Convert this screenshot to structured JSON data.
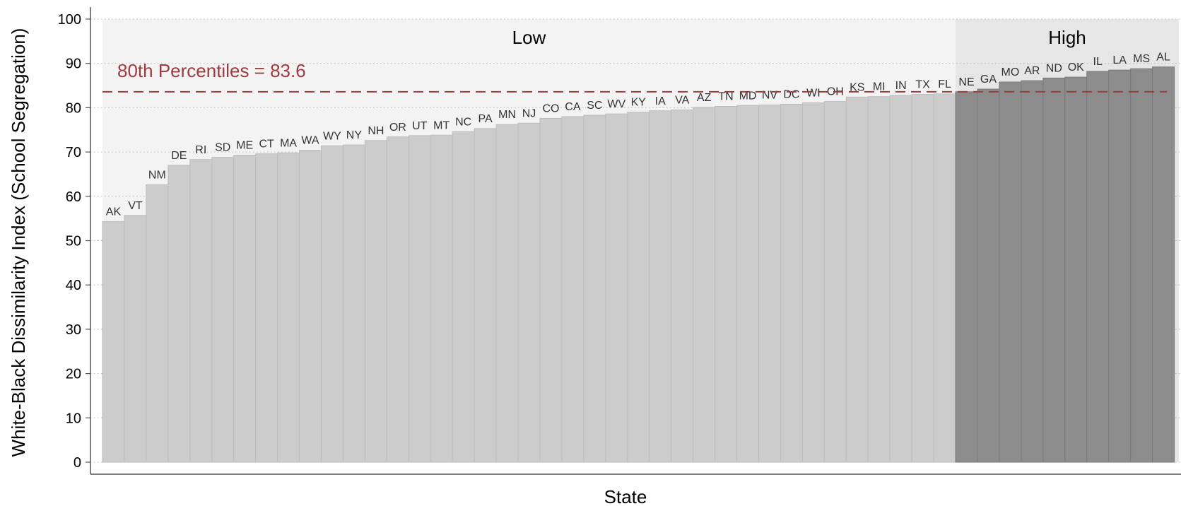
{
  "chart_data": {
    "type": "bar",
    "xlabel": "State",
    "ylabel": "White-Black Dissimilarity Index (School Segregation)",
    "ylim": [
      0,
      100
    ],
    "yticks": [
      0,
      10,
      20,
      30,
      40,
      50,
      60,
      70,
      80,
      90,
      100
    ],
    "grid": "horizontal dotted",
    "categories": [
      "AK",
      "VT",
      "NM",
      "DE",
      "RI",
      "SD",
      "ME",
      "CT",
      "MA",
      "WA",
      "WY",
      "NY",
      "NH",
      "OR",
      "UT",
      "MT",
      "NC",
      "PA",
      "MN",
      "NJ",
      "CO",
      "CA",
      "SC",
      "WV",
      "KY",
      "IA",
      "VA",
      "AZ",
      "TN",
      "MD",
      "NV",
      "DC",
      "WI",
      "OH",
      "KS",
      "MI",
      "IN",
      "TX",
      "FL",
      "NE",
      "GA",
      "MO",
      "AR",
      "ND",
      "OK",
      "IL",
      "LA",
      "MS",
      "AL"
    ],
    "values": [
      54.3,
      55.7,
      62.6,
      67.0,
      68.3,
      68.8,
      69.3,
      69.6,
      69.8,
      70.4,
      71.4,
      71.6,
      72.6,
      73.4,
      73.7,
      73.8,
      74.6,
      75.3,
      76.2,
      76.5,
      77.6,
      78.0,
      78.3,
      78.6,
      79.0,
      79.3,
      79.5,
      80.1,
      80.3,
      80.5,
      80.6,
      80.8,
      81.1,
      81.4,
      82.4,
      82.5,
      82.8,
      83.0,
      83.1,
      83.6,
      84.2,
      85.8,
      86.1,
      86.7,
      86.9,
      88.2,
      88.5,
      88.8,
      89.2
    ],
    "groups": [
      {
        "name": "Low",
        "count": 39,
        "bar_color": "#cccccc",
        "band_color": "#f3f3f3"
      },
      {
        "name": "High",
        "count": 10,
        "bar_color": "#8c8c8c",
        "band_color": "#e6e6e6"
      }
    ],
    "reference_line": {
      "label": "80th Percentiles = 83.6",
      "value": 83.6,
      "color": "#9e3b41",
      "style": "dashed"
    }
  }
}
